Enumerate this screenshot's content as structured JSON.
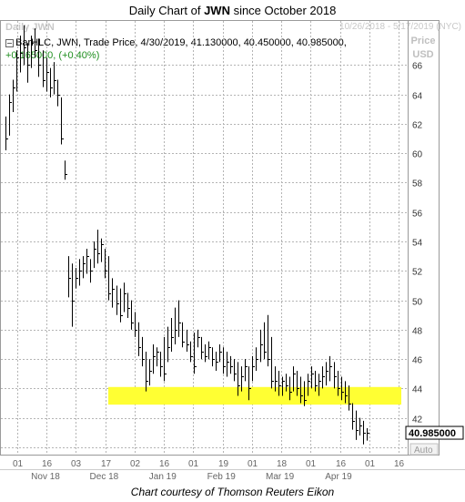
{
  "title_prefix": "Daily Chart of ",
  "title_ticker": "JWN",
  "title_suffix": " since October 2018",
  "watermark": "Daily JWN",
  "date_range": "10/26/2018 - 5/17/2019 (NYC)",
  "price_label": "Price",
  "currency_label": "USD",
  "legend_text": "BarHLC, JWN, Trade Price, 4/30/2019, 41.130000, 40.450000, 40.985000,",
  "change_text": "+0.165000, (+0.40%)",
  "last_price_tag": "40.985000",
  "auto_label": "Auto",
  "credit": "Chart courtesy of Thomson Reuters Eikon",
  "colors": {
    "bar": "#000000",
    "grid": "#b4b4b4",
    "highlight": "#ffff33",
    "change": "#1f8f1f"
  },
  "chart_data": {
    "type": "bar",
    "subtype": "ohlc-hlc",
    "ylim": [
      39.5,
      69
    ],
    "yticks": [
      40,
      42,
      44,
      46,
      48,
      50,
      52,
      54,
      56,
      58,
      60,
      62,
      64,
      66
    ],
    "grid": true,
    "x_day_ticks": [
      "01",
      "16",
      "03",
      "17",
      "02",
      "16",
      "01",
      "19",
      "01",
      "18",
      "01",
      "16",
      "01",
      "16"
    ],
    "month_labels": [
      "Nov 18",
      "Dec 18",
      "Jan 19",
      "Feb 19",
      "Mar 19",
      "Apr 19"
    ],
    "support_zone": [
      42.9,
      44.1
    ],
    "bars": [
      [
        62.5,
        60.2,
        61.0
      ],
      [
        64.0,
        61.2,
        63.5
      ],
      [
        65.0,
        62.8,
        64.5
      ],
      [
        67.0,
        64.2,
        66.5
      ],
      [
        68.0,
        65.5,
        66.8
      ],
      [
        68.7,
        66.0,
        67.2
      ],
      [
        67.5,
        64.8,
        66.0
      ],
      [
        68.0,
        65.8,
        67.5
      ],
      [
        68.5,
        66.5,
        67.0
      ],
      [
        67.8,
        65.2,
        66.0
      ],
      [
        67.0,
        64.5,
        65.0
      ],
      [
        66.5,
        64.2,
        65.5
      ],
      [
        65.8,
        63.8,
        64.5
      ],
      [
        66.2,
        64.0,
        65.0
      ],
      [
        65.0,
        63.2,
        64.0
      ],
      [
        63.8,
        60.6,
        61.0
      ],
      [
        59.5,
        58.2,
        58.6
      ],
      [
        53.0,
        50.2,
        51.5
      ],
      [
        52.5,
        48.2,
        50.0
      ],
      [
        52.2,
        50.8,
        51.5
      ],
      [
        52.8,
        51.0,
        52.0
      ],
      [
        53.0,
        51.5,
        52.5
      ],
      [
        53.5,
        51.8,
        53.0
      ],
      [
        52.8,
        51.2,
        52.0
      ],
      [
        54.0,
        52.2,
        53.5
      ],
      [
        54.8,
        52.5,
        53.2
      ],
      [
        54.2,
        52.6,
        53.8
      ],
      [
        53.5,
        51.5,
        52.0
      ],
      [
        53.0,
        50.0,
        50.5
      ],
      [
        51.5,
        49.5,
        50.8
      ],
      [
        51.0,
        49.0,
        49.8
      ],
      [
        50.8,
        48.5,
        49.0
      ],
      [
        51.2,
        49.2,
        50.5
      ],
      [
        50.5,
        48.8,
        49.5
      ],
      [
        50.0,
        48.0,
        48.5
      ],
      [
        49.2,
        47.5,
        48.0
      ],
      [
        48.5,
        46.2,
        46.8
      ],
      [
        47.5,
        45.5,
        46.0
      ],
      [
        46.5,
        43.8,
        44.5
      ],
      [
        46.0,
        44.2,
        45.2
      ],
      [
        47.0,
        45.0,
        46.2
      ],
      [
        46.8,
        45.5,
        46.5
      ],
      [
        46.5,
        44.8,
        45.5
      ],
      [
        47.5,
        44.5,
        45.0
      ],
      [
        48.2,
        45.8,
        46.8
      ],
      [
        48.8,
        46.5,
        47.5
      ],
      [
        49.5,
        47.0,
        48.0
      ],
      [
        50.0,
        47.5,
        48.5
      ],
      [
        48.5,
        46.8,
        47.2
      ],
      [
        48.0,
        46.5,
        47.0
      ],
      [
        47.2,
        45.8,
        46.2
      ],
      [
        47.8,
        45.0,
        45.5
      ],
      [
        48.0,
        46.8,
        47.5
      ],
      [
        47.5,
        46.0,
        46.5
      ],
      [
        47.0,
        45.8,
        46.2
      ],
      [
        47.2,
        46.0,
        46.8
      ],
      [
        46.8,
        45.5,
        46.0
      ],
      [
        46.5,
        45.2,
        45.8
      ],
      [
        47.0,
        45.8,
        46.5
      ],
      [
        46.8,
        45.0,
        45.5
      ],
      [
        46.5,
        44.8,
        45.8
      ],
      [
        46.2,
        45.0,
        45.5
      ],
      [
        46.0,
        44.5,
        45.0
      ],
      [
        45.8,
        43.5,
        44.2
      ],
      [
        45.5,
        43.8,
        44.8
      ],
      [
        46.0,
        44.5,
        45.5
      ],
      [
        45.5,
        43.2,
        44.0
      ],
      [
        46.2,
        44.5,
        45.5
      ],
      [
        46.8,
        45.2,
        46.0
      ],
      [
        48.0,
        45.8,
        47.0
      ],
      [
        48.5,
        46.0,
        46.5
      ],
      [
        49.0,
        45.5,
        46.0
      ],
      [
        47.5,
        44.0,
        44.5
      ],
      [
        45.5,
        43.8,
        44.5
      ],
      [
        45.2,
        43.5,
        44.2
      ],
      [
        44.8,
        43.5,
        44.5
      ],
      [
        45.0,
        43.8,
        44.2
      ],
      [
        44.8,
        43.2,
        43.8
      ],
      [
        45.5,
        43.8,
        45.0
      ],
      [
        45.2,
        43.5,
        44.0
      ],
      [
        44.8,
        43.0,
        43.5
      ],
      [
        44.5,
        42.8,
        43.2
      ],
      [
        45.0,
        43.5,
        44.5
      ],
      [
        45.5,
        44.0,
        45.0
      ],
      [
        45.2,
        43.8,
        44.2
      ],
      [
        45.0,
        43.5,
        44.5
      ],
      [
        45.5,
        44.0,
        44.8
      ],
      [
        45.8,
        44.2,
        45.2
      ],
      [
        46.2,
        44.5,
        45.5
      ],
      [
        45.8,
        44.0,
        44.8
      ],
      [
        45.2,
        43.5,
        44.0
      ],
      [
        44.8,
        43.2,
        43.8
      ],
      [
        44.5,
        43.0,
        43.5
      ],
      [
        44.2,
        42.5,
        43.0
      ],
      [
        43.0,
        41.2,
        41.8
      ],
      [
        42.5,
        40.5,
        41.2
      ],
      [
        42.0,
        40.8,
        41.5
      ],
      [
        41.8,
        40.2,
        41.0
      ],
      [
        41.3,
        40.45,
        40.985
      ]
    ]
  }
}
